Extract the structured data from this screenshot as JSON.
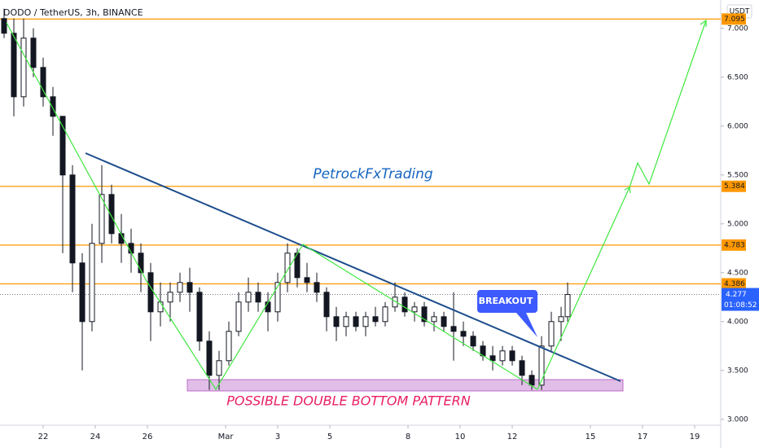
{
  "chart_data": {
    "type": "candlestick",
    "title": "DODO / TetherUS, 3h, BINANCE",
    "currency": "USDT",
    "xlim": [
      -1.65625,
      26
    ],
    "xticks": [
      {
        "value": 0,
        "label": "22"
      },
      {
        "value": 2,
        "label": "24"
      },
      {
        "value": 4,
        "label": "26"
      },
      {
        "value": 7,
        "label": "Mar"
      },
      {
        "value": 9,
        "label": "3"
      },
      {
        "value": 11,
        "label": "5"
      },
      {
        "value": 14,
        "label": "8"
      },
      {
        "value": 16,
        "label": "10"
      },
      {
        "value": 18,
        "label": "12"
      },
      {
        "value": 21,
        "label": "15"
      },
      {
        "value": 23,
        "label": "17"
      },
      {
        "value": 25,
        "label": "19"
      }
    ],
    "ylim": [
      2.94,
      7.29
    ],
    "yticks": [
      {
        "value": 3,
        "label": "3.000"
      },
      {
        "value": 3.5,
        "label": "3.500"
      },
      {
        "value": 4,
        "label": "4.000"
      },
      {
        "value": 4.5,
        "label": "4.500"
      },
      {
        "value": 5,
        "label": "5.000"
      },
      {
        "value": 5.5,
        "label": "5.500"
      },
      {
        "value": 6,
        "label": "6.000"
      },
      {
        "value": 6.5,
        "label": "6.500"
      },
      {
        "value": 7,
        "label": "7.000"
      }
    ],
    "up_color": "#ffffff",
    "down_color": "#131722",
    "candles": [
      [
        -1.5,
        7.1,
        7.2,
        6.9,
        6.95
      ],
      [
        -1.125,
        6.95,
        7.1,
        6.1,
        6.3
      ],
      [
        -0.75,
        6.3,
        7.1,
        6.2,
        6.9
      ],
      [
        -0.375,
        6.9,
        7.0,
        6.5,
        6.6
      ],
      [
        0,
        6.6,
        6.7,
        6.2,
        6.3
      ],
      [
        0.375,
        6.3,
        6.4,
        5.9,
        6.1
      ],
      [
        0.75,
        6.1,
        6.1,
        4.7,
        5.5
      ],
      [
        1.125,
        5.5,
        5.6,
        4.3,
        4.6
      ],
      [
        1.5,
        4.6,
        4.7,
        3.5,
        4.0
      ],
      [
        1.875,
        4.0,
        5.0,
        3.9,
        4.8
      ],
      [
        2.25,
        4.8,
        5.6,
        4.6,
        5.3
      ],
      [
        2.625,
        5.3,
        5.4,
        4.8,
        4.9
      ],
      [
        3.0,
        4.9,
        5.1,
        4.6,
        4.8
      ],
      [
        3.375,
        4.8,
        4.95,
        4.5,
        4.7
      ],
      [
        3.75,
        4.7,
        4.8,
        4.3,
        4.5
      ],
      [
        4.125,
        4.5,
        4.6,
        3.8,
        4.1
      ],
      [
        4.5,
        4.1,
        4.4,
        3.95,
        4.2
      ],
      [
        4.875,
        4.2,
        4.4,
        4.0,
        4.3
      ],
      [
        5.25,
        4.3,
        4.5,
        4.2,
        4.4
      ],
      [
        5.625,
        4.4,
        4.55,
        4.1,
        4.3
      ],
      [
        6.0,
        4.3,
        4.35,
        3.7,
        3.8
      ],
      [
        6.375,
        3.8,
        3.9,
        3.3,
        3.45
      ],
      [
        6.75,
        3.45,
        3.7,
        3.3,
        3.6
      ],
      [
        7.125,
        3.6,
        4.0,
        3.55,
        3.9
      ],
      [
        7.5,
        3.9,
        4.3,
        3.85,
        4.2
      ],
      [
        7.875,
        4.2,
        4.45,
        4.1,
        4.3
      ],
      [
        8.25,
        4.3,
        4.4,
        4.1,
        4.2
      ],
      [
        8.625,
        4.2,
        4.3,
        3.9,
        4.1
      ],
      [
        9.0,
        4.1,
        4.5,
        4.0,
        4.4
      ],
      [
        9.375,
        4.4,
        4.8,
        4.3,
        4.7
      ],
      [
        9.75,
        4.7,
        4.75,
        4.35,
        4.45
      ],
      [
        10.125,
        4.45,
        4.6,
        4.3,
        4.4
      ],
      [
        10.5,
        4.4,
        4.5,
        4.2,
        4.3
      ],
      [
        10.875,
        4.3,
        4.35,
        3.9,
        4.05
      ],
      [
        11.25,
        4.05,
        4.15,
        3.8,
        3.95
      ],
      [
        11.625,
        3.95,
        4.1,
        3.85,
        4.05
      ],
      [
        12.0,
        4.05,
        4.1,
        3.9,
        3.95
      ],
      [
        12.375,
        3.95,
        4.1,
        3.85,
        4.05
      ],
      [
        12.75,
        4.05,
        4.15,
        3.95,
        4.0
      ],
      [
        13.125,
        4.0,
        4.2,
        3.95,
        4.15
      ],
      [
        13.5,
        4.15,
        4.4,
        4.1,
        4.25
      ],
      [
        13.875,
        4.25,
        4.3,
        4.05,
        4.1
      ],
      [
        14.25,
        4.1,
        4.2,
        4.0,
        4.15
      ],
      [
        14.625,
        4.15,
        4.2,
        3.95,
        4.0
      ],
      [
        15.0,
        4.0,
        4.1,
        3.9,
        4.05
      ],
      [
        15.375,
        4.05,
        4.1,
        3.9,
        3.95
      ],
      [
        15.75,
        3.95,
        4.3,
        3.6,
        3.9
      ],
      [
        16.125,
        3.9,
        4.0,
        3.75,
        3.85
      ],
      [
        16.5,
        3.85,
        3.9,
        3.7,
        3.75
      ],
      [
        16.875,
        3.75,
        3.8,
        3.6,
        3.65
      ],
      [
        17.25,
        3.65,
        3.75,
        3.5,
        3.6
      ],
      [
        17.625,
        3.6,
        3.75,
        3.55,
        3.7
      ],
      [
        18.0,
        3.7,
        3.75,
        3.55,
        3.6
      ],
      [
        18.375,
        3.6,
        3.65,
        3.35,
        3.45
      ],
      [
        18.75,
        3.45,
        3.5,
        3.3,
        3.35
      ],
      [
        19.125,
        3.35,
        3.85,
        3.3,
        3.75
      ],
      [
        19.5,
        3.75,
        4.1,
        3.7,
        4.0
      ],
      [
        19.875,
        4.0,
        4.15,
        3.8,
        4.05
      ],
      [
        20.125,
        4.05,
        4.4,
        4.0,
        4.277
      ]
    ],
    "levels": [
      {
        "value": 7.095,
        "label": "7.095",
        "color": "#ff9800"
      },
      {
        "value": 5.384,
        "label": "5.384",
        "color": "#ff9800"
      },
      {
        "value": 4.783,
        "label": "4.783",
        "color": "#ff9800"
      },
      {
        "value": 4.386,
        "label": "4.386",
        "color": "#ff9800"
      }
    ],
    "last_price": {
      "value": 4.277,
      "label": "4.277",
      "countdown": "01:08:52",
      "color": "#2962ff"
    },
    "annotations": {
      "watermark": "PetrockFxTrading",
      "pattern": "POSSIBLE DOUBLE BOTTOM PATTERN",
      "breakout": "BREAKOUT"
    }
  }
}
